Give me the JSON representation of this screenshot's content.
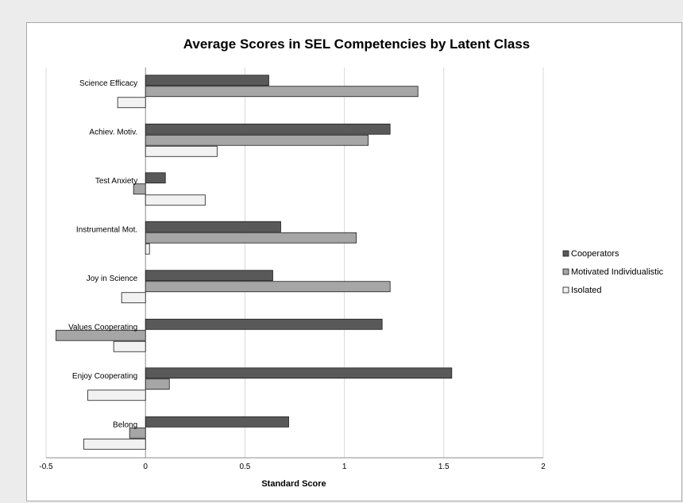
{
  "chart_data": {
    "type": "bar",
    "orientation": "horizontal",
    "title": "Average Scores in SEL Competencies by Latent Class",
    "xlabel": "Standard Score",
    "ylabel": "",
    "xlim": [
      -0.5,
      2
    ],
    "xticks": [
      -0.5,
      0,
      0.5,
      1,
      1.5,
      2
    ],
    "xtick_labels": [
      "-0.5",
      "0",
      "0.5",
      "1",
      "1.5",
      "2"
    ],
    "grid": true,
    "legend_position": "right",
    "categories": [
      "Science Efficacy",
      "Achiev. Motiv.",
      "Test Anxiety",
      "Instrumental Mot.",
      "Joy in Science",
      "Values Cooperating",
      "Enjoy Cooperating",
      "Belong"
    ],
    "series": [
      {
        "name": "Cooperators",
        "color": "#595959",
        "values": [
          0.62,
          1.23,
          0.1,
          0.68,
          0.64,
          1.19,
          1.54,
          0.72
        ]
      },
      {
        "name": "Motivated Individualistic",
        "color": "#a6a6a6",
        "values": [
          1.37,
          1.12,
          -0.06,
          1.06,
          1.23,
          -0.45,
          0.12,
          -0.08
        ]
      },
      {
        "name": "Isolated",
        "color": "#f2f2f2",
        "values": [
          -0.14,
          0.36,
          0.3,
          0.02,
          -0.12,
          -0.16,
          -0.29,
          -0.31
        ]
      }
    ]
  }
}
